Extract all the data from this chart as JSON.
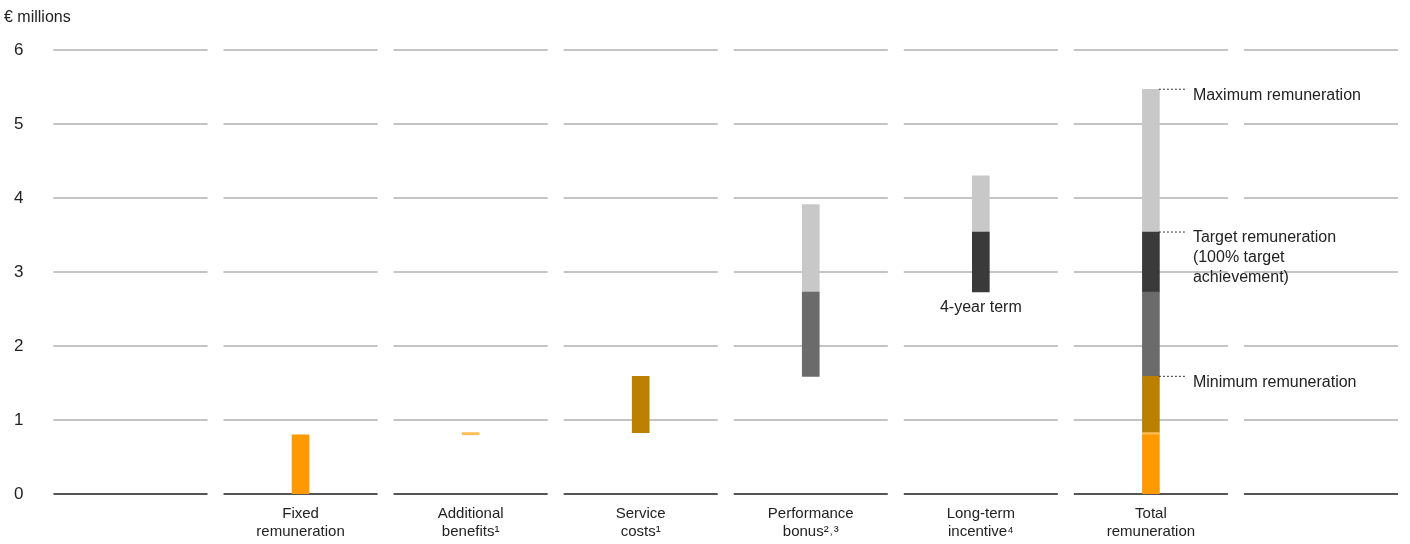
{
  "chart_data": {
    "type": "bar",
    "ylabel": "€ millions",
    "categories": [
      null,
      "Fixed remuneration",
      "Additional benefits¹",
      "Service costs¹",
      "Performance bonus²˒³",
      "Long-term incentive⁴",
      "Total remuneration",
      null
    ],
    "series": [
      {
        "color": "#ff9900",
        "base": [
          null,
          0,
          null,
          null,
          null,
          null,
          0,
          null
        ],
        "values": [
          null,
          0.8,
          null,
          null,
          null,
          null,
          0.8,
          null
        ]
      },
      {
        "color": "#ffbe55",
        "base": [
          null,
          null,
          0.8,
          null,
          null,
          null,
          0.8,
          null
        ],
        "values": [
          null,
          null,
          0.03,
          null,
          null,
          null,
          0.03,
          null
        ]
      },
      {
        "color": "#bb8000",
        "base": [
          null,
          null,
          null,
          0.83,
          null,
          null,
          0.83,
          null
        ],
        "values": [
          null,
          null,
          null,
          0.76,
          null,
          null,
          0.76,
          null
        ]
      },
      {
        "color": "#6b6b6b",
        "base": [
          null,
          null,
          null,
          null,
          1.59,
          null,
          1.59,
          null
        ],
        "values": [
          null,
          null,
          null,
          null,
          1.14,
          null,
          1.14,
          null
        ]
      },
      {
        "color": "#3a3a3a",
        "base": [
          null,
          null,
          null,
          null,
          null,
          2.73,
          2.73,
          null
        ],
        "values": [
          null,
          null,
          null,
          null,
          null,
          0.81,
          0.81,
          null
        ]
      },
      {
        "color": "#c8c8c8",
        "base": [
          null,
          null,
          null,
          null,
          2.73,
          3.54,
          3.54,
          null
        ],
        "values": [
          null,
          null,
          null,
          null,
          1.18,
          0.76,
          1.93,
          null
        ]
      }
    ],
    "ylim": [
      0,
      6
    ],
    "yticks": [
      0,
      1,
      2,
      3,
      4,
      5,
      6
    ],
    "grid": "y",
    "legend": false,
    "annotations": [
      {
        "text": "4-year term",
        "x": "Long-term incentive⁴",
        "y": 2.73
      },
      {
        "text": "Maximum remuneration",
        "x": "Total remuneration",
        "y": 5.47
      },
      {
        "text": "Target remuneration (100% target achievement)",
        "x": "Total remuneration",
        "y": 3.54
      },
      {
        "text": "Minimum remuneration",
        "x": "Total remuneration",
        "y": 1.59
      }
    ]
  }
}
